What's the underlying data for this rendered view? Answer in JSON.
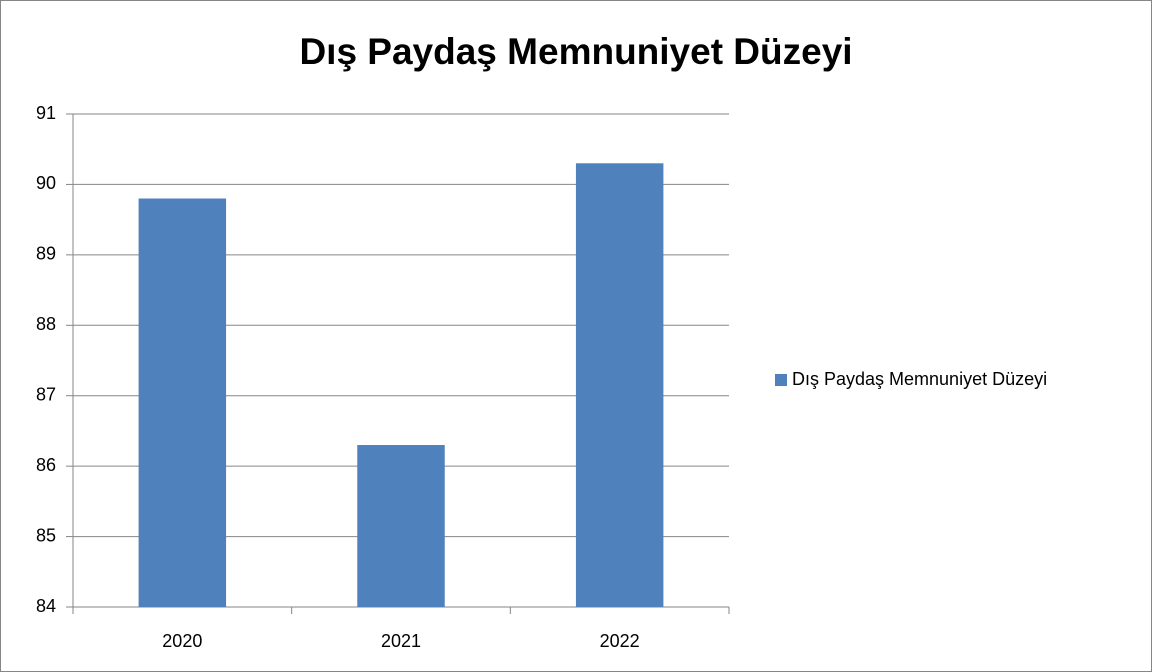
{
  "chart_data": {
    "type": "bar",
    "title": "Dış Paydaş Memnuniyet Düzeyi",
    "categories": [
      "2020",
      "2021",
      "2022"
    ],
    "series": [
      {
        "name": "Dış Paydaş Memnuniyet Düzeyi",
        "color": "#4f81bd",
        "values": [
          89.8,
          86.3,
          90.3
        ]
      }
    ],
    "ylim": [
      84,
      91
    ],
    "yticks": [
      84,
      85,
      86,
      87,
      88,
      89,
      90,
      91
    ],
    "grid": true,
    "legend": "right"
  }
}
